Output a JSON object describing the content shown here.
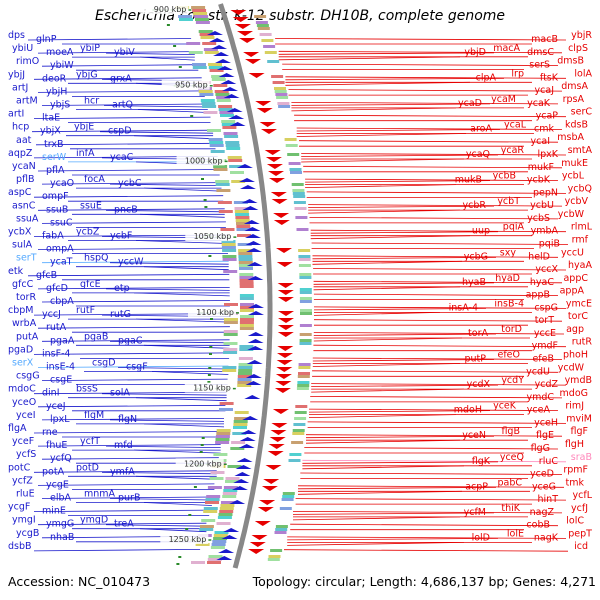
{
  "title": "Escherichia coli str. K-12 substr. DH10B, complete genome",
  "accession": "Accession: NC_010473",
  "summary": "Topology: circular; Length: 4,686,137 bp; Genes: 4,271",
  "colors": {
    "left_strand": "#1a1acc",
    "right_strand": "#e60000",
    "rna_gene": "#55aaff",
    "pseudo_gene": "#ff88bb",
    "tick": "#2a8a2a",
    "backbone": "#888888"
  },
  "kbp_marks": [
    "900 kbp",
    "950 kbp",
    "1000 kbp",
    "1050 kbp",
    "1100 kbp",
    "1150 kbp",
    "1200 kbp",
    "1250 kbp"
  ],
  "left_labels": [
    {
      "text": "dps",
      "kind": "gene"
    },
    {
      "text": "glnP",
      "kind": "gene"
    },
    {
      "text": "ybiU",
      "kind": "gene"
    },
    {
      "text": "moeA",
      "kind": "gene"
    },
    {
      "text": "ybiP",
      "kind": "gene"
    },
    {
      "text": "ybiV",
      "kind": "gene"
    },
    {
      "text": "rimO",
      "kind": "gene"
    },
    {
      "text": "ybiW",
      "kind": "gene"
    },
    {
      "text": "ybjJ",
      "kind": "gene"
    },
    {
      "text": "deoR",
      "kind": "gene"
    },
    {
      "text": "ybjG",
      "kind": "gene"
    },
    {
      "text": "grxA",
      "kind": "gene"
    },
    {
      "text": "artJ",
      "kind": "gene"
    },
    {
      "text": "ybjH",
      "kind": "gene"
    },
    {
      "text": "artM",
      "kind": "gene"
    },
    {
      "text": "ybjS",
      "kind": "gene"
    },
    {
      "text": "hcr",
      "kind": "gene"
    },
    {
      "text": "artQ",
      "kind": "gene"
    },
    {
      "text": "artI",
      "kind": "gene"
    },
    {
      "text": "ltaE",
      "kind": "gene"
    },
    {
      "text": "hcp",
      "kind": "gene"
    },
    {
      "text": "ybjX",
      "kind": "gene"
    },
    {
      "text": "ybjE",
      "kind": "gene"
    },
    {
      "text": "cspD",
      "kind": "gene"
    },
    {
      "text": "aat",
      "kind": "gene"
    },
    {
      "text": "trxB",
      "kind": "gene"
    },
    {
      "text": "aqpZ",
      "kind": "gene"
    },
    {
      "text": "serW",
      "kind": "rna"
    },
    {
      "text": "infA",
      "kind": "gene"
    },
    {
      "text": "ycaC",
      "kind": "gene"
    },
    {
      "text": "ycaN",
      "kind": "gene"
    },
    {
      "text": "pflA",
      "kind": "gene"
    },
    {
      "text": "pflB",
      "kind": "gene"
    },
    {
      "text": "ycaO",
      "kind": "gene"
    },
    {
      "text": "focA",
      "kind": "gene"
    },
    {
      "text": "ycbC",
      "kind": "gene"
    },
    {
      "text": "aspC",
      "kind": "gene"
    },
    {
      "text": "ompF",
      "kind": "gene"
    },
    {
      "text": "asnC",
      "kind": "gene"
    },
    {
      "text": "ssuB",
      "kind": "gene"
    },
    {
      "text": "ssuE",
      "kind": "gene"
    },
    {
      "text": "pncB",
      "kind": "gene"
    },
    {
      "text": "ssuA",
      "kind": "gene"
    },
    {
      "text": "ssuC",
      "kind": "gene"
    },
    {
      "text": "ycbX",
      "kind": "gene"
    },
    {
      "text": "fabA",
      "kind": "gene"
    },
    {
      "text": "ycbZ",
      "kind": "gene"
    },
    {
      "text": "ycbF",
      "kind": "gene"
    },
    {
      "text": "sulA",
      "kind": "gene"
    },
    {
      "text": "ompA",
      "kind": "gene"
    },
    {
      "text": "serT",
      "kind": "rna"
    },
    {
      "text": "ycaT",
      "kind": "gene"
    },
    {
      "text": "hspQ",
      "kind": "gene"
    },
    {
      "text": "yccW",
      "kind": "gene"
    },
    {
      "text": "etk",
      "kind": "gene"
    },
    {
      "text": "gfcB",
      "kind": "gene"
    },
    {
      "text": "gfcC",
      "kind": "gene"
    },
    {
      "text": "gfcD",
      "kind": "gene"
    },
    {
      "text": "gfcE",
      "kind": "gene"
    },
    {
      "text": "etp",
      "kind": "gene"
    },
    {
      "text": "torR",
      "kind": "gene"
    },
    {
      "text": "cbpA",
      "kind": "gene"
    },
    {
      "text": "cbpM",
      "kind": "gene"
    },
    {
      "text": "yccJ",
      "kind": "gene"
    },
    {
      "text": "rutF",
      "kind": "gene"
    },
    {
      "text": "rutG",
      "kind": "gene"
    },
    {
      "text": "wrbA",
      "kind": "gene"
    },
    {
      "text": "rutA",
      "kind": "gene"
    },
    {
      "text": "putA",
      "kind": "gene"
    },
    {
      "text": "pgaA",
      "kind": "gene"
    },
    {
      "text": "pgaB",
      "kind": "gene"
    },
    {
      "text": "pgaC",
      "kind": "gene"
    },
    {
      "text": "pgaD",
      "kind": "gene"
    },
    {
      "text": "insF-4",
      "kind": "gene"
    },
    {
      "text": "serX",
      "kind": "rna"
    },
    {
      "text": "insE-4",
      "kind": "gene"
    },
    {
      "text": "csgD",
      "kind": "gene"
    },
    {
      "text": "csgF",
      "kind": "gene"
    },
    {
      "text": "csgG",
      "kind": "gene"
    },
    {
      "text": "csgE",
      "kind": "gene"
    },
    {
      "text": "mdoC",
      "kind": "gene"
    },
    {
      "text": "dinI",
      "kind": "gene"
    },
    {
      "text": "bssS",
      "kind": "gene"
    },
    {
      "text": "solA",
      "kind": "gene"
    },
    {
      "text": "yceO",
      "kind": "gene"
    },
    {
      "text": "yceJ",
      "kind": "gene"
    },
    {
      "text": "yceI",
      "kind": "gene"
    },
    {
      "text": "lpxL",
      "kind": "gene"
    },
    {
      "text": "flgM",
      "kind": "gene"
    },
    {
      "text": "flgN",
      "kind": "gene"
    },
    {
      "text": "flgA",
      "kind": "gene"
    },
    {
      "text": "rne",
      "kind": "gene"
    },
    {
      "text": "yceF",
      "kind": "gene"
    },
    {
      "text": "fhuE",
      "kind": "gene"
    },
    {
      "text": "ycfT",
      "kind": "gene"
    },
    {
      "text": "mfd",
      "kind": "gene"
    },
    {
      "text": "ycfS",
      "kind": "gene"
    },
    {
      "text": "ycfQ",
      "kind": "gene"
    },
    {
      "text": "potC",
      "kind": "gene"
    },
    {
      "text": "potA",
      "kind": "gene"
    },
    {
      "text": "potD",
      "kind": "gene"
    },
    {
      "text": "ymfA",
      "kind": "gene"
    },
    {
      "text": "ycfZ",
      "kind": "gene"
    },
    {
      "text": "ycgE",
      "kind": "gene"
    },
    {
      "text": "rluE",
      "kind": "gene"
    },
    {
      "text": "elbA",
      "kind": "gene"
    },
    {
      "text": "mnmA",
      "kind": "gene"
    },
    {
      "text": "purB",
      "kind": "gene"
    },
    {
      "text": "ycgF",
      "kind": "gene"
    },
    {
      "text": "minE",
      "kind": "gene"
    },
    {
      "text": "ymgI",
      "kind": "gene"
    },
    {
      "text": "ymgG",
      "kind": "gene"
    },
    {
      "text": "ymgD",
      "kind": "gene"
    },
    {
      "text": "treA",
      "kind": "gene"
    },
    {
      "text": "ycgB",
      "kind": "gene"
    },
    {
      "text": "nhaB",
      "kind": "gene"
    },
    {
      "text": "dsbB",
      "kind": "gene"
    }
  ],
  "right_labels": [
    {
      "text": "macB",
      "kind": "gene"
    },
    {
      "text": "ybjR",
      "kind": "gene"
    },
    {
      "text": "ybjD",
      "kind": "gene"
    },
    {
      "text": "macA",
      "kind": "gene"
    },
    {
      "text": "dmsC",
      "kind": "gene"
    },
    {
      "text": "clpS",
      "kind": "gene"
    },
    {
      "text": "serS",
      "kind": "gene"
    },
    {
      "text": "dmsB",
      "kind": "gene"
    },
    {
      "text": "clpA",
      "kind": "gene"
    },
    {
      "text": "lrp",
      "kind": "gene"
    },
    {
      "text": "ftsK",
      "kind": "gene"
    },
    {
      "text": "lolA",
      "kind": "gene"
    },
    {
      "text": "ycaJ",
      "kind": "gene"
    },
    {
      "text": "dmsA",
      "kind": "gene"
    },
    {
      "text": "ycaD",
      "kind": "gene"
    },
    {
      "text": "ycaM",
      "kind": "gene"
    },
    {
      "text": "ycaK",
      "kind": "gene"
    },
    {
      "text": "rpsA",
      "kind": "gene"
    },
    {
      "text": "ycaP",
      "kind": "gene"
    },
    {
      "text": "serC",
      "kind": "gene"
    },
    {
      "text": "aroA",
      "kind": "gene"
    },
    {
      "text": "ycaL",
      "kind": "gene"
    },
    {
      "text": "cmk",
      "kind": "gene"
    },
    {
      "text": "kdsB",
      "kind": "gene"
    },
    {
      "text": "ycaI",
      "kind": "gene"
    },
    {
      "text": "msbA",
      "kind": "gene"
    },
    {
      "text": "ycaQ",
      "kind": "gene"
    },
    {
      "text": "ycaR",
      "kind": "gene"
    },
    {
      "text": "lpxK",
      "kind": "gene"
    },
    {
      "text": "smtA",
      "kind": "gene"
    },
    {
      "text": "mukF",
      "kind": "gene"
    },
    {
      "text": "mukE",
      "kind": "gene"
    },
    {
      "text": "mukB",
      "kind": "gene"
    },
    {
      "text": "ycbB",
      "kind": "gene"
    },
    {
      "text": "ycbK",
      "kind": "gene"
    },
    {
      "text": "ycbL",
      "kind": "gene"
    },
    {
      "text": "pepN",
      "kind": "gene"
    },
    {
      "text": "ycbQ",
      "kind": "gene"
    },
    {
      "text": "ycbR",
      "kind": "gene"
    },
    {
      "text": "ycbT",
      "kind": "gene"
    },
    {
      "text": "ycbU",
      "kind": "gene"
    },
    {
      "text": "ycbV",
      "kind": "gene"
    },
    {
      "text": "ycbS",
      "kind": "gene"
    },
    {
      "text": "ycbW",
      "kind": "gene"
    },
    {
      "text": "uup",
      "kind": "gene"
    },
    {
      "text": "pqiA",
      "kind": "gene"
    },
    {
      "text": "ymbA",
      "kind": "gene"
    },
    {
      "text": "rlmL",
      "kind": "gene"
    },
    {
      "text": "pqiB",
      "kind": "gene"
    },
    {
      "text": "rmf",
      "kind": "gene"
    },
    {
      "text": "ycbG",
      "kind": "gene"
    },
    {
      "text": "sxy",
      "kind": "gene"
    },
    {
      "text": "helD",
      "kind": "gene"
    },
    {
      "text": "yccU",
      "kind": "gene"
    },
    {
      "text": "yccX",
      "kind": "gene"
    },
    {
      "text": "hyaA",
      "kind": "gene"
    },
    {
      "text": "hyaB",
      "kind": "gene"
    },
    {
      "text": "hyaD",
      "kind": "gene"
    },
    {
      "text": "hyaC",
      "kind": "gene"
    },
    {
      "text": "appC",
      "kind": "gene"
    },
    {
      "text": "appB",
      "kind": "gene"
    },
    {
      "text": "appA",
      "kind": "gene"
    },
    {
      "text": "insA-4",
      "kind": "gene"
    },
    {
      "text": "insB-4",
      "kind": "gene"
    },
    {
      "text": "cspG",
      "kind": "gene"
    },
    {
      "text": "ymcE",
      "kind": "gene"
    },
    {
      "text": "torT",
      "kind": "gene"
    },
    {
      "text": "torC",
      "kind": "gene"
    },
    {
      "text": "torA",
      "kind": "gene"
    },
    {
      "text": "torD",
      "kind": "gene"
    },
    {
      "text": "yccE",
      "kind": "gene"
    },
    {
      "text": "agp",
      "kind": "gene"
    },
    {
      "text": "ymdF",
      "kind": "gene"
    },
    {
      "text": "rutR",
      "kind": "gene"
    },
    {
      "text": "putP",
      "kind": "gene"
    },
    {
      "text": "efeO",
      "kind": "gene"
    },
    {
      "text": "efeB",
      "kind": "gene"
    },
    {
      "text": "phoH",
      "kind": "gene"
    },
    {
      "text": "ycdU",
      "kind": "gene"
    },
    {
      "text": "ycdW",
      "kind": "gene"
    },
    {
      "text": "ycdX",
      "kind": "gene"
    },
    {
      "text": "ycdY",
      "kind": "gene"
    },
    {
      "text": "ycdZ",
      "kind": "gene"
    },
    {
      "text": "ymdB",
      "kind": "gene"
    },
    {
      "text": "ymdC",
      "kind": "gene"
    },
    {
      "text": "mdoG",
      "kind": "gene"
    },
    {
      "text": "mdoH",
      "kind": "gene"
    },
    {
      "text": "yceK",
      "kind": "gene"
    },
    {
      "text": "yceA",
      "kind": "gene"
    },
    {
      "text": "rimJ",
      "kind": "gene"
    },
    {
      "text": "yceH",
      "kind": "gene"
    },
    {
      "text": "mviM",
      "kind": "gene"
    },
    {
      "text": "yceN",
      "kind": "gene"
    },
    {
      "text": "flgB",
      "kind": "gene"
    },
    {
      "text": "flgE",
      "kind": "gene"
    },
    {
      "text": "flgF",
      "kind": "gene"
    },
    {
      "text": "flgG",
      "kind": "gene"
    },
    {
      "text": "flgH",
      "kind": "gene"
    },
    {
      "text": "flgK",
      "kind": "gene"
    },
    {
      "text": "yceQ",
      "kind": "gene"
    },
    {
      "text": "rluC",
      "kind": "gene"
    },
    {
      "text": "sraB",
      "kind": "pseudo"
    },
    {
      "text": "yceD",
      "kind": "gene"
    },
    {
      "text": "rpmF",
      "kind": "gene"
    },
    {
      "text": "acpP",
      "kind": "gene"
    },
    {
      "text": "pabC",
      "kind": "gene"
    },
    {
      "text": "yceG",
      "kind": "gene"
    },
    {
      "text": "tmk",
      "kind": "gene"
    },
    {
      "text": "hinT",
      "kind": "gene"
    },
    {
      "text": "ycfL",
      "kind": "gene"
    },
    {
      "text": "ycfM",
      "kind": "gene"
    },
    {
      "text": "thiK",
      "kind": "gene"
    },
    {
      "text": "nagZ",
      "kind": "gene"
    },
    {
      "text": "ycfJ",
      "kind": "gene"
    },
    {
      "text": "cobB",
      "kind": "gene"
    },
    {
      "text": "lolC",
      "kind": "gene"
    },
    {
      "text": "lolD",
      "kind": "gene"
    },
    {
      "text": "lolE",
      "kind": "gene"
    },
    {
      "text": "nagK",
      "kind": "gene"
    },
    {
      "text": "pepT",
      "kind": "gene"
    },
    {
      "text": "icd",
      "kind": "gene"
    }
  ]
}
